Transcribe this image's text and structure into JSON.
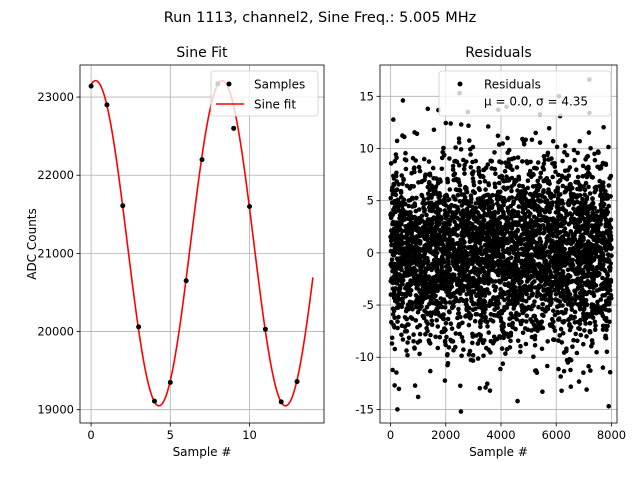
{
  "figure": {
    "suptitle": "Run 1113, channel2, Sine Freq.: 5.005 MHz"
  },
  "chart_data": [
    {
      "type": "line",
      "title": "Sine Fit",
      "xlabel": "Sample #",
      "ylabel": "ADC Counts",
      "xlim": [
        -0.7,
        14.7
      ],
      "ylim": [
        18830,
        23410
      ],
      "grid": true,
      "xticks": [
        0,
        5,
        10
      ],
      "yticks": [
        19000,
        20000,
        21000,
        22000,
        23000
      ],
      "legend": {
        "placement": "upper right",
        "entries": [
          "Samples",
          "Sine fit"
        ]
      },
      "series": [
        {
          "name": "Samples",
          "kind": "scatter",
          "color": "#000000",
          "x": [
            0,
            1,
            2,
            3,
            4,
            5,
            6,
            7,
            8,
            9,
            10,
            11,
            12,
            13
          ],
          "y": [
            23140,
            22900,
            21610,
            20060,
            19110,
            19350,
            20650,
            22200,
            23170,
            22600,
            21600,
            20030,
            19100,
            19360
          ]
        },
        {
          "name": "Sine fit",
          "kind": "line",
          "color": "#ff0000",
          "model": {
            "offset": 21130,
            "amplitude": 2080,
            "period": 7.99,
            "phase_at_zero": 1.345,
            "x_start": 0,
            "x_end": 14
          }
        }
      ]
    },
    {
      "type": "scatter",
      "title": "Residuals",
      "xlabel": "Sample #",
      "ylabel": "",
      "xlim": [
        -380,
        8200
      ],
      "ylim": [
        -16.3,
        18.0
      ],
      "grid": true,
      "xticks": [
        0,
        2000,
        4000,
        6000,
        8000
      ],
      "yticks": [
        -15,
        -10,
        -5,
        0,
        5,
        10,
        15
      ],
      "legend": {
        "placement": "upper right",
        "entries": [
          "Residuals"
        ],
        "stats_line": "μ = 0.0, σ = 4.35"
      },
      "series": [
        {
          "name": "Residuals",
          "color": "#000000",
          "distribution": {
            "n": 8000,
            "x_range": [
              0,
              8000
            ],
            "mean": 0.0,
            "sigma": 4.35
          },
          "outliers": [
            {
              "x": 2500,
              "y": 15.3
            },
            {
              "x": 7200,
              "y": 16.6
            },
            {
              "x": 450,
              "y": 14.6
            },
            {
              "x": 2800,
              "y": 13.5
            },
            {
              "x": 6100,
              "y": 15.0
            },
            {
              "x": 250,
              "y": -15.0
            },
            {
              "x": 2550,
              "y": -15.2
            },
            {
              "x": 4600,
              "y": -14.2
            },
            {
              "x": 7900,
              "y": -14.7
            },
            {
              "x": 150,
              "y": -12.7
            },
            {
              "x": 1000,
              "y": -13.8
            },
            {
              "x": 3600,
              "y": -13.2
            },
            {
              "x": 5500,
              "y": -13.3
            },
            {
              "x": 7100,
              "y": -13.1
            },
            {
              "x": 1350,
              "y": 13.8
            },
            {
              "x": 4200,
              "y": 14.0
            }
          ]
        }
      ]
    }
  ]
}
